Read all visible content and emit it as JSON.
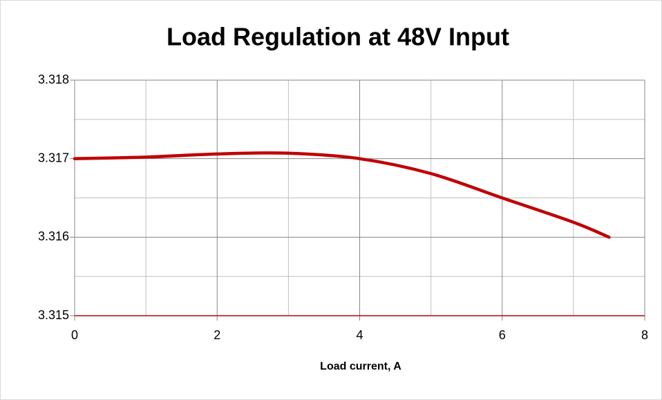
{
  "chart_data": {
    "type": "line",
    "title": "Load Regulation at 48V Input",
    "x_label": "Load current, A",
    "x": [
      0,
      1,
      2,
      3,
      4,
      5,
      6,
      7,
      7.5
    ],
    "values": [
      3.317,
      3.31702,
      3.31706,
      3.31707,
      3.317,
      3.31681,
      3.3165,
      3.31619,
      3.316
    ],
    "color": "#c00000",
    "x_axis_color": "#c00000",
    "xlim": [
      0,
      8
    ],
    "xticks": [
      0,
      2,
      4,
      6,
      8
    ],
    "ylim": [
      3.315,
      3.318
    ],
    "yticks": [
      3.315,
      3.316,
      3.317,
      3.318
    ],
    "grid": true
  }
}
